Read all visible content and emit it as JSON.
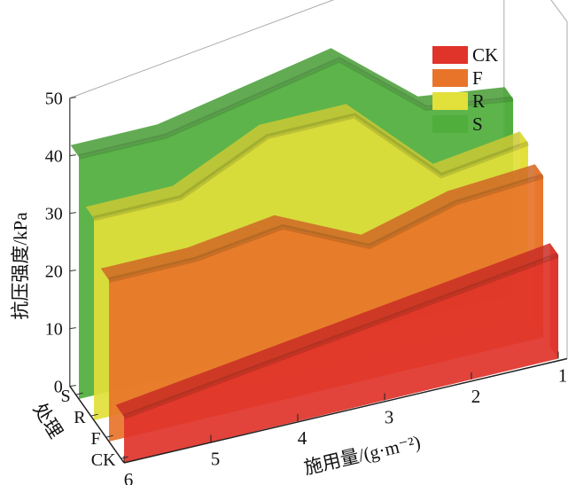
{
  "chart_data": {
    "type": "area",
    "title": "",
    "xlabel": "施用量/(g·m⁻²)",
    "ylabel": "处理",
    "zlabel": "抗压强度/kPa",
    "x": [
      6,
      5,
      4,
      3,
      2,
      1
    ],
    "x_ticks": [
      "6",
      "5",
      "4",
      "3",
      "2",
      "1"
    ],
    "y_ticks": [
      "CK",
      "F",
      "R",
      "S"
    ],
    "z_ticks": [
      "0",
      "10",
      "20",
      "30",
      "40",
      "50"
    ],
    "zlim": [
      0,
      50
    ],
    "legend_position": "top-right",
    "series": [
      {
        "name": "CK",
        "color": "#e0332a",
        "values": [
          8,
          10,
          12,
          14,
          16,
          18
        ]
      },
      {
        "name": "F",
        "color": "#e8742a",
        "values": [
          28,
          28,
          30,
          23,
          27,
          28
        ]
      },
      {
        "name": "R",
        "color": "#e2e03a",
        "values": [
          35,
          35,
          42,
          42,
          28,
          30
        ]
      },
      {
        "name": "S",
        "color": "#4fae3c",
        "values": [
          42,
          42,
          45,
          48,
          36,
          34
        ]
      }
    ]
  }
}
